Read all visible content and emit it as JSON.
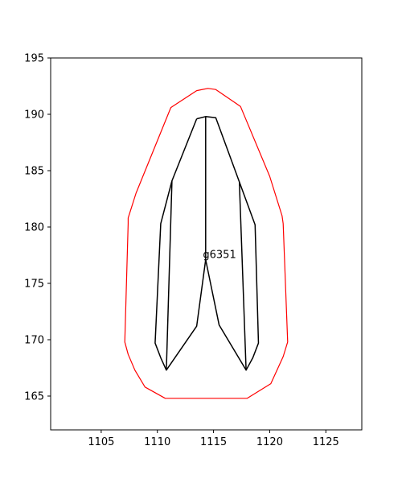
{
  "chart_data": {
    "type": "line",
    "title": "",
    "xlabel": "",
    "ylabel": "",
    "xlim": [
      1100.5,
      1128.2
    ],
    "ylim": [
      162,
      195
    ],
    "x_ticks": [
      1105,
      1110,
      1115,
      1120,
      1125
    ],
    "y_ticks": [
      165,
      170,
      175,
      180,
      185,
      190,
      195
    ],
    "grid": false,
    "annotations": [
      {
        "text": "g6351",
        "x": 1114.2,
        "y": 177.1
      }
    ],
    "series": [
      {
        "color": "#ff0000",
        "stroke_width": 1.2,
        "closed": true,
        "points": [
          [
            1113.5,
            192.1
          ],
          [
            1114.5,
            192.3
          ],
          [
            1115.2,
            192.2
          ],
          [
            1117.4,
            190.7
          ],
          [
            1120.0,
            184.5
          ],
          [
            1121.1,
            181.0
          ],
          [
            1121.2,
            180.3
          ],
          [
            1121.6,
            169.8
          ],
          [
            1121.2,
            168.5
          ],
          [
            1120.1,
            166.1
          ],
          [
            1118.0,
            164.8
          ],
          [
            1110.7,
            164.8
          ],
          [
            1108.9,
            165.8
          ],
          [
            1108.0,
            167.3
          ],
          [
            1107.4,
            168.7
          ],
          [
            1107.1,
            169.8
          ],
          [
            1107.4,
            180.3
          ],
          [
            1107.4,
            180.8
          ],
          [
            1108.1,
            183.0
          ],
          [
            1111.2,
            190.6
          ]
        ]
      },
      {
        "color": "#000000",
        "stroke_width": 1.5,
        "closed": false,
        "points": [
          [
            1113.5,
            189.6
          ],
          [
            1114.3,
            189.8
          ],
          [
            1115.2,
            189.7
          ],
          [
            1117.3,
            184.0
          ],
          [
            1118.7,
            180.2
          ],
          [
            1119.0,
            169.7
          ],
          [
            1118.5,
            168.4
          ],
          [
            1117.9,
            167.3
          ],
          [
            1115.5,
            171.3
          ],
          [
            1114.3,
            177.1
          ],
          [
            1113.5,
            171.2
          ],
          [
            1110.8,
            167.3
          ],
          [
            1110.3,
            168.4
          ],
          [
            1109.8,
            169.7
          ],
          [
            1110.3,
            180.3
          ],
          [
            1111.3,
            184.1
          ],
          [
            1113.5,
            189.6
          ]
        ]
      },
      {
        "color": "#000000",
        "stroke_width": 1.5,
        "closed": false,
        "points": [
          [
            1114.3,
            189.8
          ],
          [
            1114.3,
            177.1
          ]
        ]
      },
      {
        "color": "#000000",
        "stroke_width": 1.5,
        "closed": false,
        "points": [
          [
            1111.3,
            184.1
          ],
          [
            1110.8,
            167.3
          ]
        ]
      },
      {
        "color": "#000000",
        "stroke_width": 1.5,
        "closed": false,
        "points": [
          [
            1117.3,
            184.0
          ],
          [
            1117.9,
            167.3
          ]
        ]
      }
    ]
  }
}
